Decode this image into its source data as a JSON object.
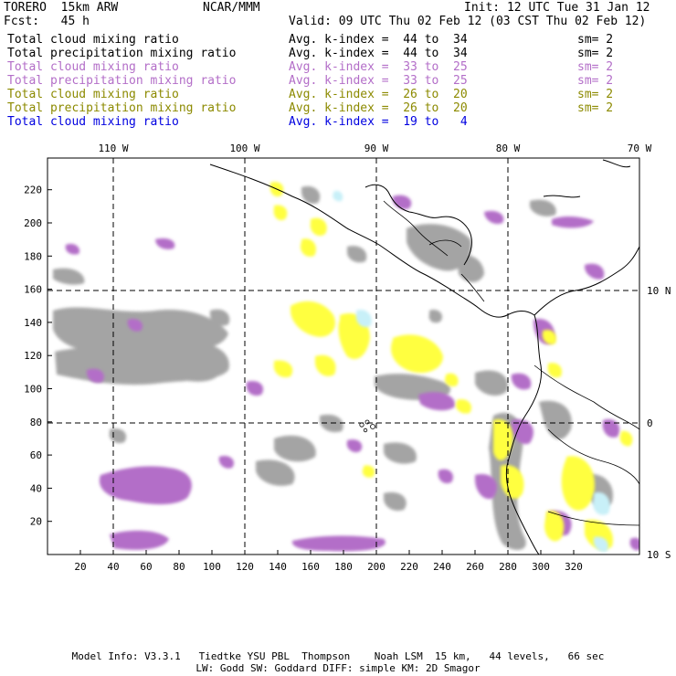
{
  "header": {
    "model": "TORERO  15km ARW",
    "org": "NCAR/MMM",
    "init": "Init: 12 UTC Tue 31 Jan 12",
    "fcst": "Fcst:   45 h",
    "valid": "Valid: 09 UTC Thu 02 Feb 12 (03 CST Thu 02 Feb 12)"
  },
  "legend": [
    {
      "field": "Total cloud mixing ratio",
      "index": "Avg. k-index =  44 to  34",
      "sm": "sm= 2",
      "color": "#000000"
    },
    {
      "field": "Total precipitation mixing ratio",
      "index": "Avg. k-index =  44 to  34",
      "sm": "sm= 2",
      "color": "#000000"
    },
    {
      "field": "Total cloud mixing ratio",
      "index": "Avg. k-index =  33 to  25",
      "sm": "sm= 2",
      "color": "#b36ec8"
    },
    {
      "field": "Total precipitation mixing ratio",
      "index": "Avg. k-index =  33 to  25",
      "sm": "sm= 2",
      "color": "#b36ec8"
    },
    {
      "field": "Total cloud mixing ratio",
      "index": "Avg. k-index =  26 to  20",
      "sm": "sm= 2",
      "color": "#8c8a00"
    },
    {
      "field": "Total precipitation mixing ratio",
      "index": "Avg. k-index =  26 to  20",
      "sm": "sm= 2",
      "color": "#8c8a00"
    },
    {
      "field": "Total cloud mixing ratio",
      "index": "Avg. k-index =  19 to   4",
      "sm": "",
      "color": "#0000e0"
    }
  ],
  "map": {
    "top_lon_labels": [
      "110 W",
      "100 W",
      "90 W",
      "80 W",
      "70 W"
    ],
    "right_lat_labels": [
      "10 N",
      "0",
      "10 S"
    ],
    "x_ticks": [
      "20",
      "40",
      "60",
      "80",
      "100",
      "120",
      "140",
      "160",
      "180",
      "200",
      "220",
      "240",
      "260",
      "280",
      "300",
      "320"
    ],
    "y_ticks": [
      "20",
      "40",
      "60",
      "80",
      "100",
      "120",
      "140",
      "160",
      "180",
      "200",
      "220"
    ],
    "colors": {
      "low_level": "#a0a0a0",
      "mid_level": "#b36ec8",
      "upper_level": "#ffff40",
      "high_level": "#c8f0f8"
    }
  },
  "footer": {
    "line1": "Model Info: V3.3.1   Tiedtke YSU PBL  Thompson    Noah LSM  15 km,   44 levels,   66 sec",
    "line2": "LW: Godd SW: Goddard DIFF: simple KM: 2D Smagor"
  }
}
